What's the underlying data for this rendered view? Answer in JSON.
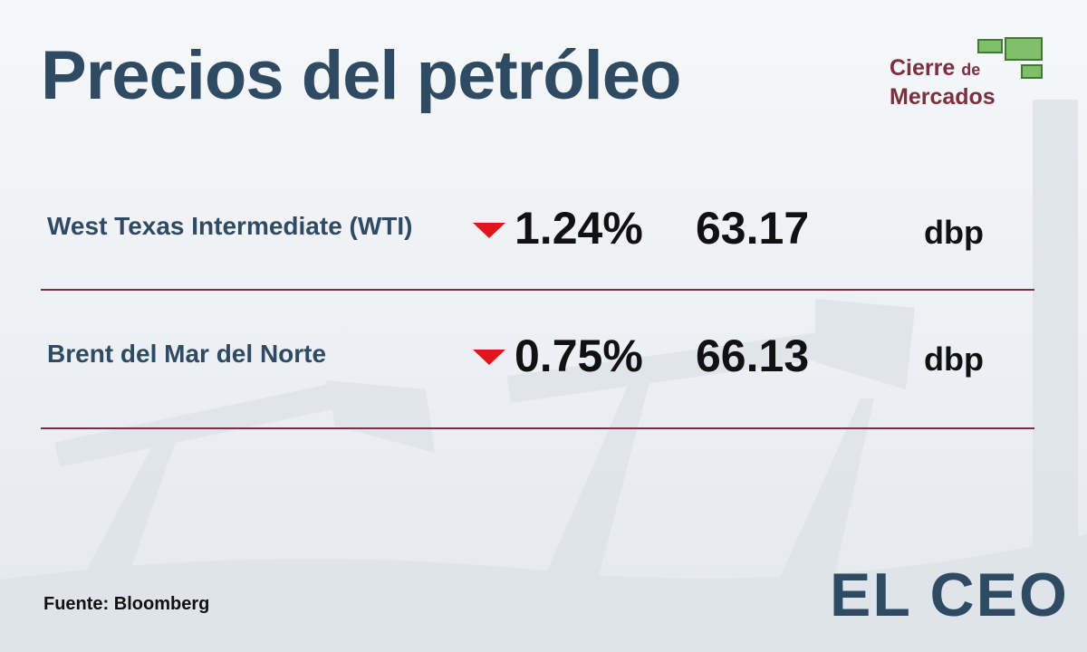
{
  "header": {
    "title": "Precios del petróleo"
  },
  "badge": {
    "line1": "Cierre",
    "line1_small": "de",
    "line2": "Mercados"
  },
  "table": {
    "rows": [
      {
        "name": "West Texas Intermediate (WTI)",
        "change": "1.24%",
        "price": "63.17",
        "unit": "dbp"
      },
      {
        "name": "Brent del Mar del Norte",
        "change": "0.75%",
        "price": "66.13",
        "unit": "dbp"
      }
    ]
  },
  "footer": {
    "source": "Fuente: Bloomberg",
    "brand": "EL CEO"
  }
}
